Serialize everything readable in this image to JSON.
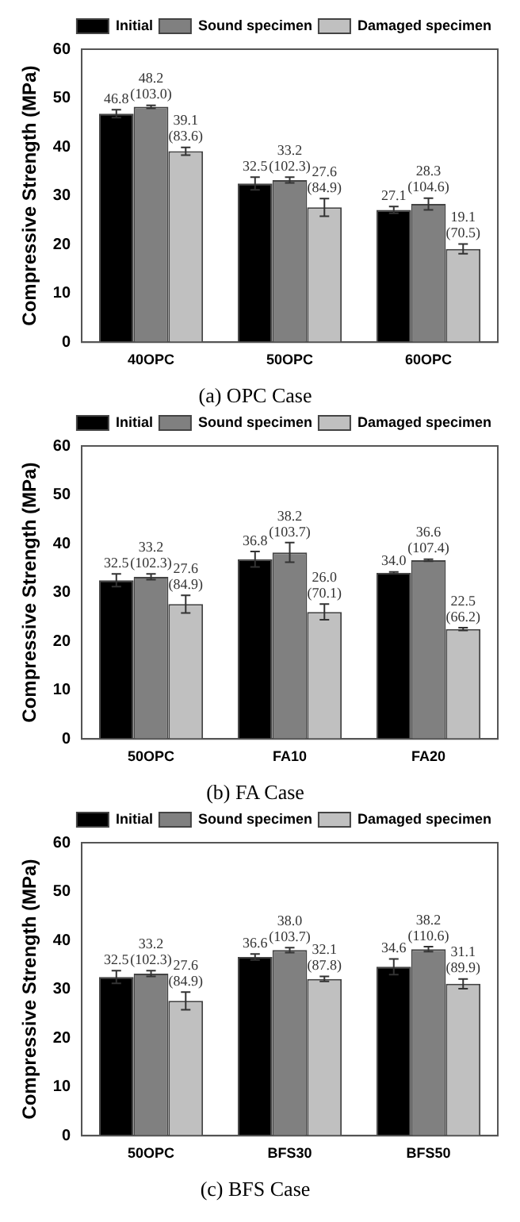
{
  "chart_data": [
    {
      "type": "bar",
      "title": "(a) OPC Case",
      "ylabel": "Compressive Strength (MPa)",
      "categories": [
        "40OPC",
        "50OPC",
        "60OPC"
      ],
      "ylim": [
        0,
        60
      ],
      "yticks": [
        0,
        10,
        20,
        30,
        40,
        50,
        60
      ],
      "grid": false,
      "legend": "top right",
      "series": [
        {
          "name": "Initial",
          "color": "#000000",
          "values": [
            46.8,
            32.5,
            27.1
          ],
          "errors": [
            0.8,
            1.3,
            0.7
          ],
          "value_labels": [
            "46.8",
            "32.5",
            "27.1"
          ]
        },
        {
          "name": "Sound specimen",
          "color": "#808080",
          "values": [
            48.2,
            33.2,
            28.3
          ],
          "errors": [
            0.3,
            0.6,
            1.2
          ],
          "value_labels": [
            "48.2 (103.0)",
            "33.2 (102.3)",
            "28.3 (104.6)"
          ]
        },
        {
          "name": "Damaged specimen",
          "color": "#c0c0c0",
          "values": [
            39.1,
            27.6,
            19.1
          ],
          "errors": [
            0.8,
            1.8,
            1.0
          ],
          "value_labels": [
            "39.1 (83.6)",
            "27.6 (84.9)",
            "19.1 (70.5)"
          ]
        }
      ]
    },
    {
      "type": "bar",
      "title": "(b) FA Case",
      "ylabel": "Compressive Strength (MPa)",
      "categories": [
        "50OPC",
        "FA10",
        "FA20"
      ],
      "ylim": [
        0,
        60
      ],
      "yticks": [
        0,
        10,
        20,
        30,
        40,
        50,
        60
      ],
      "grid": false,
      "legend": "top right",
      "series": [
        {
          "name": "Initial",
          "color": "#000000",
          "values": [
            32.5,
            36.8,
            34.0
          ],
          "errors": [
            1.3,
            1.6,
            0.2
          ],
          "value_labels": [
            "32.5",
            "36.8",
            "34.0"
          ]
        },
        {
          "name": "Sound specimen",
          "color": "#808080",
          "values": [
            33.2,
            38.2,
            36.6
          ],
          "errors": [
            0.6,
            2.0,
            0.2
          ],
          "value_labels": [
            "33.2 (102.3)",
            "38.2 (103.7)",
            "36.6 (107.4)"
          ]
        },
        {
          "name": "Damaged specimen",
          "color": "#c0c0c0",
          "values": [
            27.6,
            26.0,
            22.5
          ],
          "errors": [
            1.8,
            1.6,
            0.3
          ],
          "value_labels": [
            "27.6 (84.9)",
            "26.0 (70.1)",
            "22.5 (66.2)"
          ]
        }
      ]
    },
    {
      "type": "bar",
      "title": "(c) BFS Case",
      "ylabel": "Compressive Strength (MPa)",
      "categories": [
        "50OPC",
        "BFS30",
        "BFS50"
      ],
      "ylim": [
        0,
        60
      ],
      "yticks": [
        0,
        10,
        20,
        30,
        40,
        50,
        60
      ],
      "grid": false,
      "legend": "top right",
      "series": [
        {
          "name": "Initial",
          "color": "#000000",
          "values": [
            32.5,
            36.6,
            34.6
          ],
          "errors": [
            1.3,
            0.6,
            1.6
          ],
          "value_labels": [
            "32.5",
            "36.6",
            "34.6"
          ]
        },
        {
          "name": "Sound specimen",
          "color": "#808080",
          "values": [
            33.2,
            38.0,
            38.2
          ],
          "errors": [
            0.6,
            0.5,
            0.5
          ],
          "value_labels": [
            "33.2 (102.3)",
            "38.0 (103.7)",
            "38.2 (110.6)"
          ]
        },
        {
          "name": "Damaged specimen",
          "color": "#c0c0c0",
          "values": [
            27.6,
            32.1,
            31.1
          ],
          "errors": [
            1.8,
            0.5,
            1.0
          ],
          "value_labels": [
            "27.6 (84.9)",
            "32.1 (87.8)",
            "31.1 (89.9)"
          ]
        }
      ]
    }
  ]
}
